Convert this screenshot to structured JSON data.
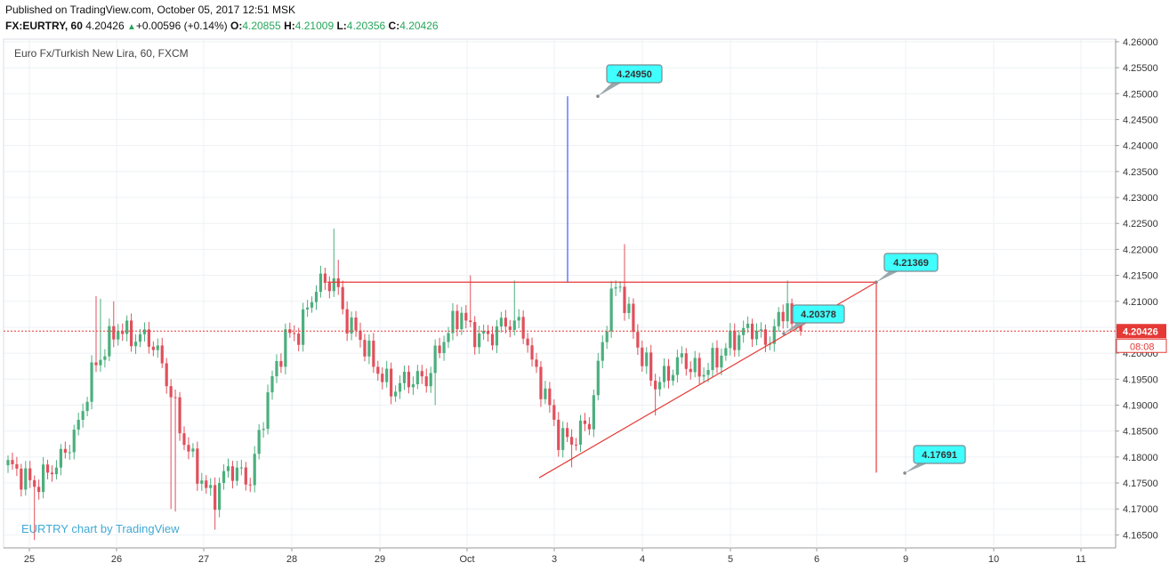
{
  "header": {
    "published": "Published on TradingView.com, October 05, 2017 12:51 MSK",
    "symbol": "FX:EURTRY, 60",
    "last": "4.20426",
    "change": "+0.00596 (+0.14%)",
    "o_label": "O:",
    "o": "4.20855",
    "h_label": "H:",
    "h": "4.21009",
    "l_label": "L:",
    "l": "4.20356",
    "c_label": "C:",
    "c": "4.20426"
  },
  "colors": {
    "up": "#4caf7d",
    "down": "#e0505c",
    "trend": "#e53935",
    "blue_line": "#3d5afe",
    "callout": "#40ffff",
    "price_tag": "#e53935"
  },
  "chart_data": {
    "type": "candlestick",
    "title": "Euro Fx/Turkish New Lira, 60, FXCM",
    "watermark": "EURTRY chart by TradingView",
    "ylim": [
      4.1625,
      4.2605
    ],
    "y_ticks": [
      "4.26000",
      "4.25500",
      "4.25000",
      "4.24500",
      "4.24000",
      "4.23500",
      "4.23000",
      "4.22500",
      "4.22000",
      "4.21500",
      "4.21000",
      "4.20500",
      "4.20000",
      "4.19500",
      "4.19000",
      "4.18500",
      "4.18000",
      "4.17500",
      "4.17000",
      "4.16500"
    ],
    "x_ticks": [
      "25",
      "26",
      "27",
      "28",
      "29",
      "Oct",
      "3",
      "4",
      "5",
      "6",
      "9",
      "10",
      "11"
    ],
    "last_price": {
      "value": 4.20426,
      "label": "4.20426",
      "countdown": "08:08"
    },
    "anchors": [
      {
        "i": 0,
        "v": 4.1785
      },
      {
        "i": 6,
        "v": 4.1745
      },
      {
        "i": 12,
        "v": 4.1795
      },
      {
        "i": 16,
        "v": 4.186
      },
      {
        "i": 19,
        "v": 4.196
      },
      {
        "i": 22,
        "v": 4.201
      },
      {
        "i": 25,
        "v": 4.205
      },
      {
        "i": 28,
        "v": 4.203
      },
      {
        "i": 32,
        "v": 4.203
      },
      {
        "i": 35,
        "v": 4.198
      },
      {
        "i": 40,
        "v": 4.183
      },
      {
        "i": 45,
        "v": 4.1735
      },
      {
        "i": 47,
        "v": 4.1725
      },
      {
        "i": 50,
        "v": 4.178
      },
      {
        "i": 55,
        "v": 4.1755
      },
      {
        "i": 59,
        "v": 4.192
      },
      {
        "i": 63,
        "v": 4.203
      },
      {
        "i": 66,
        "v": 4.204
      },
      {
        "i": 70,
        "v": 4.213
      },
      {
        "i": 74,
        "v": 4.214
      },
      {
        "i": 77,
        "v": 4.206
      },
      {
        "i": 80,
        "v": 4.203
      },
      {
        "i": 83,
        "v": 4.198
      },
      {
        "i": 87,
        "v": 4.193
      },
      {
        "i": 91,
        "v": 4.195
      },
      {
        "i": 95,
        "v": 4.195
      },
      {
        "i": 99,
        "v": 4.203
      },
      {
        "i": 103,
        "v": 4.208
      },
      {
        "i": 105,
        "v": 4.204
      },
      {
        "i": 109,
        "v": 4.203
      },
      {
        "i": 113,
        "v": 4.206
      },
      {
        "i": 117,
        "v": 4.205
      },
      {
        "i": 119,
        "v": 4.198
      },
      {
        "i": 122,
        "v": 4.192
      },
      {
        "i": 125,
        "v": 4.184
      },
      {
        "i": 128,
        "v": 4.183
      },
      {
        "i": 132,
        "v": 4.187
      },
      {
        "i": 135,
        "v": 4.202
      },
      {
        "i": 137,
        "v": 4.211
      },
      {
        "i": 139,
        "v": 4.213
      },
      {
        "i": 141,
        "v": 4.207
      },
      {
        "i": 144,
        "v": 4.199
      },
      {
        "i": 147,
        "v": 4.194
      },
      {
        "i": 150,
        "v": 4.196
      },
      {
        "i": 153,
        "v": 4.199
      },
      {
        "i": 157,
        "v": 4.196
      },
      {
        "i": 161,
        "v": 4.199
      },
      {
        "i": 165,
        "v": 4.203
      },
      {
        "i": 169,
        "v": 4.205
      },
      {
        "i": 172,
        "v": 4.202
      },
      {
        "i": 175,
        "v": 4.206
      },
      {
        "i": 177,
        "v": 4.21
      },
      {
        "i": 178,
        "v": 4.205
      },
      {
        "i": 180,
        "v": 4.2043
      }
    ],
    "spikes": [
      {
        "i": 20,
        "hi": 4.211
      },
      {
        "i": 21,
        "hi": 4.2105
      },
      {
        "i": 24,
        "hi": 4.21
      },
      {
        "i": 37,
        "lo": 4.17
      },
      {
        "i": 38,
        "lo": 4.1695
      },
      {
        "i": 47,
        "lo": 4.166
      },
      {
        "i": 6,
        "lo": 4.164
      },
      {
        "i": 74,
        "hi": 4.224
      },
      {
        "i": 75,
        "hi": 4.218
      },
      {
        "i": 105,
        "hi": 4.215
      },
      {
        "i": 115,
        "hi": 4.214
      },
      {
        "i": 128,
        "lo": 4.178
      },
      {
        "i": 97,
        "lo": 4.19
      },
      {
        "i": 140,
        "hi": 4.221
      },
      {
        "i": 147,
        "lo": 4.188
      },
      {
        "i": 177,
        "hi": 4.214
      }
    ],
    "annotations": [
      {
        "label": "4.24950",
        "value": 4.2495
      },
      {
        "label": "4.21369",
        "value": 4.21369
      },
      {
        "label": "4.20378",
        "value": 4.20378
      },
      {
        "label": "4.17691",
        "value": 4.17691
      }
    ],
    "lines": {
      "resistance": 4.21369,
      "support_from": 4.176,
      "support_to": 4.21369,
      "projection_top": 4.2495,
      "projection_base": 4.21369,
      "target_top": 4.21369,
      "target_bottom": 4.177
    }
  }
}
